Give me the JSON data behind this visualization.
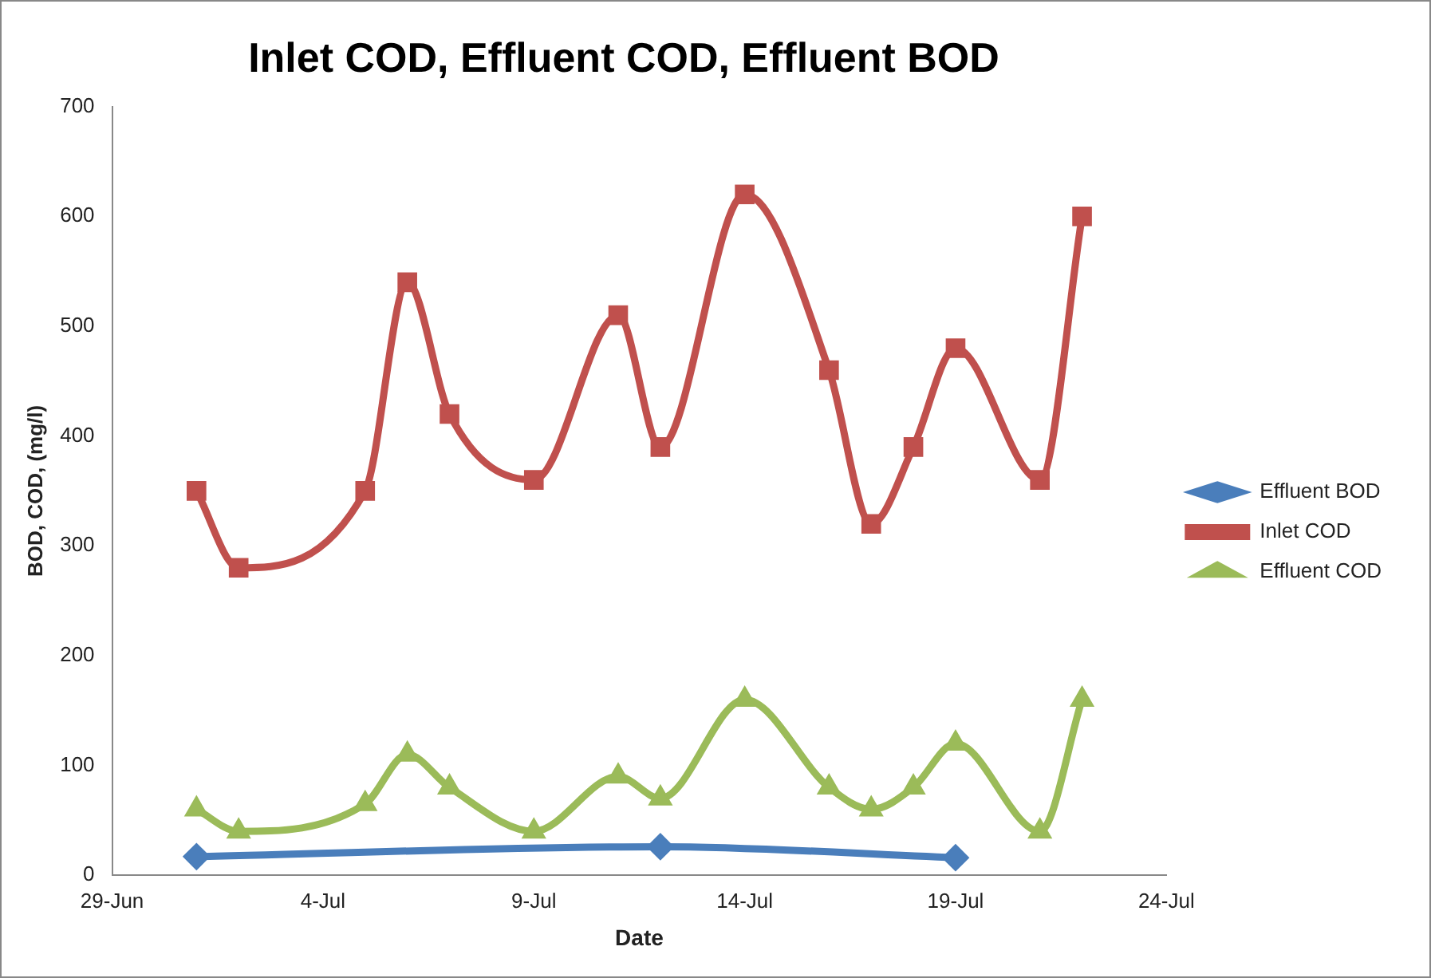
{
  "chart_data": {
    "type": "line",
    "title": "Inlet COD, Effluent COD, Effluent BOD",
    "xlabel": "Date",
    "ylabel": "BOD, COD, (mg/l)",
    "xlim": [
      "--06-29",
      "--07-24"
    ],
    "xticks": [
      {
        "value": "--06-29",
        "label": "29-Jun"
      },
      {
        "value": "--07-04",
        "label": "4-Jul"
      },
      {
        "value": "--07-09",
        "label": "9-Jul"
      },
      {
        "value": "--07-14",
        "label": "14-Jul"
      },
      {
        "value": "--07-19",
        "label": "19-Jul"
      },
      {
        "value": "--07-24",
        "label": "24-Jul"
      }
    ],
    "ylim": [
      0,
      700
    ],
    "yticks": [
      0,
      100,
      200,
      300,
      400,
      500,
      600,
      700
    ],
    "legend": "right",
    "series": [
      {
        "name": "Effluent BOD",
        "color": "#4a7ebb",
        "marker": "diamond",
        "x": [
          "--07-01",
          "--07-12",
          "--07-19"
        ],
        "values": [
          17,
          26,
          16
        ]
      },
      {
        "name": "Inlet COD",
        "color": "#c0504d",
        "marker": "square",
        "x": [
          "--07-01",
          "--07-02",
          "--07-05",
          "--07-06",
          "--07-07",
          "--07-09",
          "--07-11",
          "--07-12",
          "--07-14",
          "--07-16",
          "--07-17",
          "--07-18",
          "--07-19",
          "--07-21",
          "--07-22"
        ],
        "values": [
          350,
          280,
          350,
          540,
          420,
          360,
          510,
          390,
          620,
          460,
          320,
          390,
          480,
          360,
          600
        ]
      },
      {
        "name": "Effluent COD",
        "color": "#9bbb59",
        "marker": "triangle",
        "x": [
          "--07-01",
          "--07-02",
          "--07-05",
          "--07-06",
          "--07-07",
          "--07-09",
          "--07-11",
          "--07-12",
          "--07-14",
          "--07-16",
          "--07-17",
          "--07-18",
          "--07-19",
          "--07-21",
          "--07-22"
        ],
        "values": [
          60,
          40,
          65,
          110,
          80,
          40,
          90,
          70,
          160,
          80,
          60,
          80,
          120,
          40,
          160
        ]
      }
    ]
  }
}
